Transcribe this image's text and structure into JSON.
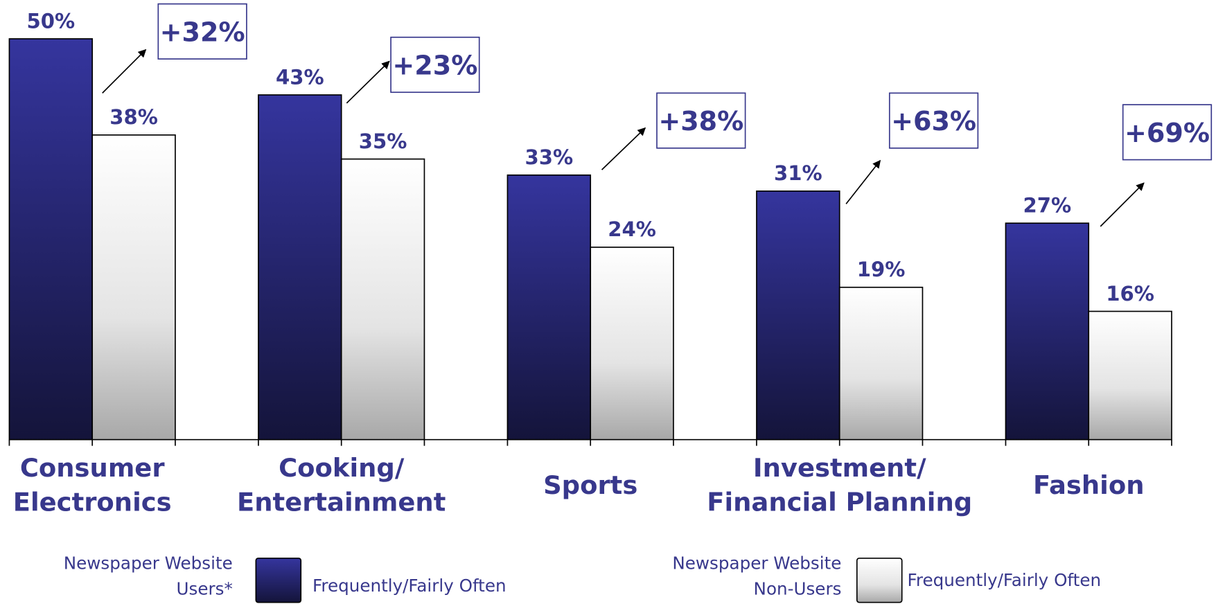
{
  "chart_data": {
    "type": "bar",
    "categories": [
      "Consumer\nElectronics",
      "Cooking/\nEntertainment",
      "Sports",
      "Investment/\nFinancial Planning",
      "Fashion"
    ],
    "series": [
      {
        "name": "Newspaper Website\nUsers*",
        "label": "Frequently/Fairly Often",
        "color": "#35359e",
        "values": [
          50,
          43,
          33,
          31,
          27
        ],
        "value_labels": [
          "50%",
          "43%",
          "33%",
          "31%",
          "27%"
        ]
      },
      {
        "name": "Newspaper Website\nNon-Users",
        "label": "Frequently/Fairly Often",
        "color": "#ececec",
        "values": [
          38,
          35,
          24,
          19,
          16
        ],
        "value_labels": [
          "38%",
          "35%",
          "24%",
          "19%",
          "16%"
        ]
      }
    ],
    "annotations": [
      "+32%",
      "+23%",
      "+38%",
      "+63%",
      "+69%"
    ],
    "ylim": [
      0,
      50
    ]
  }
}
